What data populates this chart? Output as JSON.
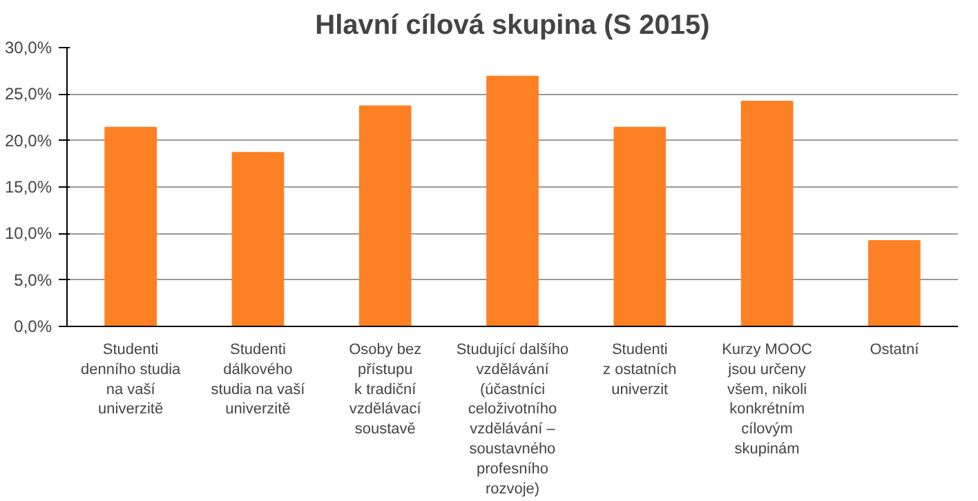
{
  "chart_data": {
    "type": "bar",
    "title": "Hlavní cílová skupina (S 2015)",
    "categories": [
      "Studenti\ndenního studia\nna vaší\nuniverzitě",
      "Studenti\ndálkového\nstudia na vaší\nuniverzitě",
      "Osoby bez\npřístupu\nk tradiční\nvzdělávací\nsoustavě",
      "Studující dalšího\nvzdělávání\n(účastníci\nceloživotního\nvzdělávání –\nsoustavného\nprofesního\nrozvoje)",
      "Studenti\nz ostatních\nuniverzit",
      "Kurzy MOOC\njsou určeny\nvšem, nikoli\nkonkrétním\ncílovým\nskupinám",
      "Ostatní"
    ],
    "values": [
      21.4,
      18.7,
      23.7,
      26.9,
      21.4,
      24.2,
      9.2
    ],
    "color": "#fd8124",
    "ylim": [
      0,
      30
    ],
    "yticks": [
      {
        "value": 0,
        "label": "0,0%"
      },
      {
        "value": 5,
        "label": "5,0%"
      },
      {
        "value": 10,
        "label": "10,0%"
      },
      {
        "value": 15,
        "label": "15,0%"
      },
      {
        "value": 20,
        "label": "20,0%"
      },
      {
        "value": 25,
        "label": "25,0%"
      },
      {
        "value": 30,
        "label": "30,0%"
      }
    ],
    "grid": "y"
  }
}
